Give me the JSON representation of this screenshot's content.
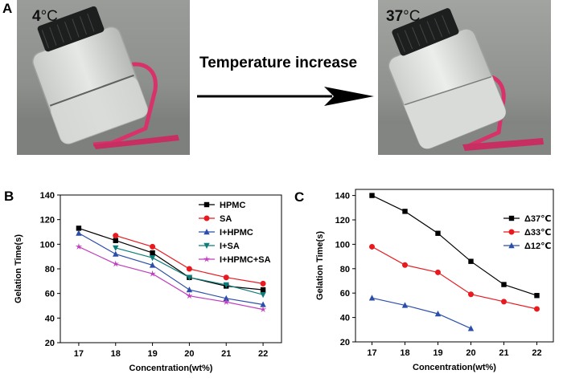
{
  "panels": {
    "a": "A",
    "b": "B",
    "c": "C"
  },
  "photo_left": {
    "temp_value": "4",
    "temp_unit": "°C"
  },
  "photo_right": {
    "temp_value": "37",
    "temp_unit": "°C"
  },
  "arrow_caption": "Temperature increase",
  "colors": {
    "black": "#000000",
    "red": "#e8191f",
    "blue": "#2b4ea8",
    "teal": "#0e7d7a",
    "magenta": "#bf3fbf",
    "holder": "#d8326a"
  },
  "chart_data": [
    {
      "type": "line",
      "panel": "B",
      "xlabel": "Concentration(wt%)",
      "ylabel": "Gelation Time(s)",
      "x": [
        17,
        18,
        19,
        20,
        21,
        22
      ],
      "xlim": [
        16.5,
        22.5
      ],
      "ylim": [
        20,
        140
      ],
      "yticks": [
        20,
        40,
        60,
        80,
        100,
        120,
        140
      ],
      "legend_position": "top-right",
      "series": [
        {
          "name": "HPMC",
          "color": "#000000",
          "marker": "square",
          "values": [
            113,
            103,
            93,
            73,
            66,
            63
          ]
        },
        {
          "name": "SA",
          "color": "#e8191f",
          "marker": "circle",
          "values": [
            null,
            107,
            98,
            80,
            73,
            68
          ]
        },
        {
          "name": "I+HPMC",
          "color": "#2b4ea8",
          "marker": "triangle-up",
          "values": [
            109,
            92,
            83,
            63,
            56,
            51
          ]
        },
        {
          "name": "I+SA",
          "color": "#0e7d7a",
          "marker": "triangle-down",
          "values": [
            null,
            97,
            89,
            73,
            67,
            59
          ]
        },
        {
          "name": "I+HPMC+SA",
          "color": "#bf3fbf",
          "marker": "star",
          "values": [
            98,
            84,
            76,
            58,
            53,
            47
          ]
        }
      ]
    },
    {
      "type": "line",
      "panel": "C",
      "xlabel": "Concentration(wt%)",
      "ylabel": "Gelation Time(s)",
      "x": [
        17,
        18,
        19,
        20,
        21,
        22
      ],
      "xlim": [
        16.5,
        22.5
      ],
      "ylim": [
        20,
        145
      ],
      "yticks": [
        20,
        40,
        60,
        80,
        100,
        120,
        140
      ],
      "legend_position": "right",
      "series": [
        {
          "name": "Δ37℃",
          "color": "#000000",
          "marker": "square",
          "values": [
            140,
            127,
            109,
            86,
            67,
            58
          ]
        },
        {
          "name": "Δ33℃",
          "color": "#e8191f",
          "marker": "circle",
          "values": [
            98,
            83,
            77,
            59,
            53,
            47
          ]
        },
        {
          "name": "Δ12℃",
          "color": "#2b4ea8",
          "marker": "triangle-up",
          "values": [
            56,
            50,
            43,
            31,
            null,
            null
          ]
        }
      ]
    }
  ]
}
